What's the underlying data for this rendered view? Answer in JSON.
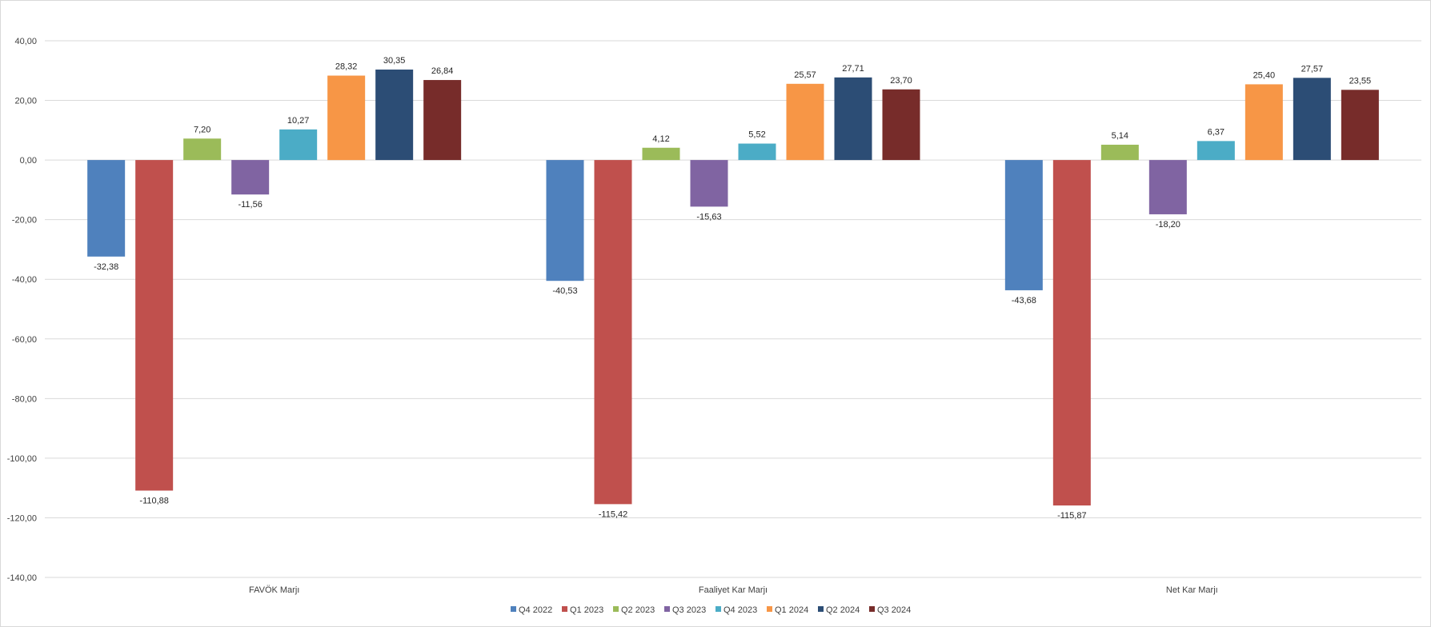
{
  "chart_data": {
    "type": "bar",
    "title": "",
    "xlabel": "",
    "ylabel": "",
    "ylim": [
      -140,
      40
    ],
    "ytick_step": 20,
    "yticks": [
      "40,00",
      "20,00",
      "0,00",
      "-20,00",
      "-40,00",
      "-60,00",
      "-80,00",
      "-100,00",
      "-120,00",
      "-140,00"
    ],
    "grid": true,
    "legend_position": "bottom",
    "categories": [
      "FAVÖK Marjı",
      "Faaliyet Kar Marjı",
      "Net Kar Marjı"
    ],
    "series": [
      {
        "name": "Q4 2022",
        "color": "#4f81bd",
        "values": [
          -32.38,
          -40.53,
          -43.68
        ],
        "labels": [
          "-32,38",
          "-40,53",
          "-43,68"
        ]
      },
      {
        "name": "Q1 2023",
        "color": "#c0504d",
        "values": [
          -110.88,
          -115.42,
          -115.87
        ],
        "labels": [
          "-110,88",
          "-115,42",
          "-115,87"
        ]
      },
      {
        "name": "Q2 2023",
        "color": "#9bbb59",
        "values": [
          7.2,
          4.12,
          5.14
        ],
        "labels": [
          "7,20",
          "4,12",
          "5,14"
        ]
      },
      {
        "name": "Q3 2023",
        "color": "#8064a2",
        "values": [
          -11.56,
          -15.63,
          -18.2
        ],
        "labels": [
          "-11,56",
          "-15,63",
          "-18,20"
        ]
      },
      {
        "name": "Q4 2023",
        "color": "#4bacc6",
        "values": [
          10.27,
          5.52,
          6.37
        ],
        "labels": [
          "10,27",
          "5,52",
          "6,37"
        ]
      },
      {
        "name": "Q1 2024",
        "color": "#f79646",
        "values": [
          28.32,
          25.57,
          25.4
        ],
        "labels": [
          "28,32",
          "25,57",
          "25,40"
        ]
      },
      {
        "name": "Q2 2024",
        "color": "#2c4d75",
        "values": [
          30.35,
          27.71,
          27.57
        ],
        "labels": [
          "30,35",
          "27,71",
          "27,57"
        ]
      },
      {
        "name": "Q3 2024",
        "color": "#772c2a",
        "values": [
          26.84,
          23.7,
          23.55
        ],
        "labels": [
          "26,84",
          "23,70",
          "23,55"
        ]
      }
    ]
  }
}
